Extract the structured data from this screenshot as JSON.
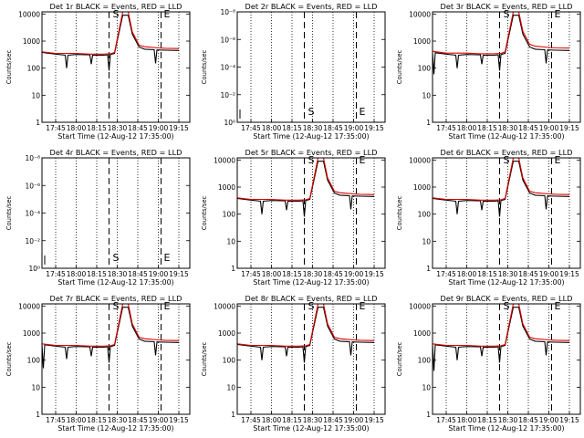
{
  "figure": {
    "background": "#ffffff",
    "axis_color": "#000000",
    "events_color": "#000000",
    "lld_color": "#e00000"
  },
  "chart_data": [
    {
      "id": "det1r",
      "type": "line",
      "scale": "log",
      "title": "Det 1r  BLACK = Events, RED = LLD",
      "ylabel": "Counts/sec",
      "xlabel": "Start Time (12-Aug-12 17:35:00)",
      "yticks": [
        "1",
        "10",
        "100",
        "1000",
        "10000"
      ],
      "xticks": [
        "17:45",
        "18:00",
        "18:15",
        "18:30",
        "18:45",
        "19:00",
        "19:15"
      ],
      "markers": [
        "S",
        "E"
      ],
      "series": [
        {
          "name": "Events",
          "color": "#000000",
          "x": [
            "17:35",
            "17:45",
            "17:52",
            "17:53",
            "17:54",
            "18:00",
            "18:10",
            "18:11",
            "18:12",
            "18:20",
            "18:23",
            "18:24",
            "18:25",
            "18:28",
            "18:34",
            "18:38",
            "18:41",
            "18:46",
            "18:50",
            "18:57",
            "18:58",
            "18:59",
            "19:05",
            "19:15"
          ],
          "y": [
            380,
            330,
            300,
            100,
            300,
            320,
            310,
            140,
            300,
            300,
            310,
            80,
            320,
            350,
            9000,
            9000,
            1800,
            600,
            500,
            480,
            150,
            470,
            460,
            450
          ]
        },
        {
          "name": "LLD",
          "color": "#e00000",
          "x": [
            "17:35",
            "17:45",
            "18:00",
            "18:10",
            "18:20",
            "18:25",
            "18:28",
            "18:34",
            "18:38",
            "18:41",
            "18:46",
            "18:50",
            "19:00",
            "19:05",
            "19:15"
          ],
          "y": [
            400,
            350,
            350,
            330,
            330,
            340,
            380,
            12000,
            12000,
            2200,
            700,
            620,
            560,
            540,
            530
          ]
        }
      ]
    },
    {
      "id": "det2r",
      "type": "line",
      "scale": "exp",
      "title": "Det 2r  BLACK = Events, RED = LLD",
      "ylabel": "Counts/sec",
      "xlabel": "Start Time (12-Aug-12 17:35:00)",
      "yticks": [
        "10⁰",
        "10⁻²",
        "10⁻⁴",
        "10⁻⁶",
        "10⁻⁸"
      ],
      "xticks": [
        "17:45",
        "18:00",
        "18:15",
        "18:30",
        "18:45",
        "19:00",
        "19:15"
      ],
      "markers": [
        "S",
        "E"
      ],
      "series": []
    },
    {
      "id": "det3r",
      "type": "line",
      "scale": "log",
      "title": "Det 3r  BLACK = Events, RED = LLD",
      "ylabel": "Counts/sec",
      "xlabel": "Start Time (12-Aug-12 17:35:00)",
      "yticks": [
        "1",
        "10",
        "100",
        "1000",
        "10000"
      ],
      "xticks": [
        "17:45",
        "18:00",
        "18:15",
        "18:30",
        "18:45",
        "19:00",
        "19:15"
      ],
      "markers": [
        "S",
        "E"
      ],
      "series": [
        {
          "name": "Events",
          "color": "#000000",
          "x": [
            "17:35",
            "17:36",
            "17:37",
            "17:45",
            "17:52",
            "17:53",
            "17:54",
            "18:00",
            "18:10",
            "18:11",
            "18:12",
            "18:20",
            "18:23",
            "18:24",
            "18:25",
            "18:28",
            "18:34",
            "18:38",
            "18:41",
            "18:46",
            "18:50",
            "18:57",
            "18:58",
            "18:59",
            "19:05",
            "19:15"
          ],
          "y": [
            380,
            60,
            370,
            330,
            300,
            100,
            300,
            320,
            310,
            140,
            300,
            300,
            310,
            80,
            320,
            350,
            9000,
            9000,
            1800,
            600,
            500,
            480,
            150,
            470,
            460,
            450
          ]
        },
        {
          "name": "LLD",
          "color": "#e00000",
          "x": [
            "17:35",
            "17:45",
            "18:00",
            "18:10",
            "18:20",
            "18:25",
            "18:28",
            "18:34",
            "18:38",
            "18:41",
            "18:46",
            "18:50",
            "19:00",
            "19:05",
            "19:15"
          ],
          "y": [
            420,
            360,
            360,
            340,
            340,
            350,
            400,
            12000,
            12000,
            2300,
            750,
            650,
            580,
            560,
            550
          ]
        }
      ]
    },
    {
      "id": "det4r",
      "type": "line",
      "scale": "exp",
      "title": "Det 4r  BLACK = Events, RED = LLD",
      "ylabel": "Counts/sec",
      "xlabel": "Start Time (12-Aug-12 17:35:00)",
      "yticks": [
        "10⁰",
        "10⁻²",
        "10⁻⁴",
        "10⁻⁶",
        "10⁻⁸"
      ],
      "xticks": [
        "17:45",
        "18:00",
        "18:15",
        "18:30",
        "18:45",
        "19:00",
        "19:15"
      ],
      "markers": [
        "S",
        "E"
      ],
      "series": []
    },
    {
      "id": "det5r",
      "type": "line",
      "scale": "log",
      "title": "Det 5r  BLACK = Events, RED = LLD",
      "ylabel": "Counts/sec",
      "xlabel": "Start Time (12-Aug-12 17:35:00)",
      "yticks": [
        "1",
        "10",
        "100",
        "1000",
        "10000"
      ],
      "xticks": [
        "17:45",
        "18:00",
        "18:15",
        "18:30",
        "18:45",
        "19:00",
        "19:15"
      ],
      "markers": [
        "S",
        "E"
      ],
      "series": [
        {
          "name": "Events",
          "color": "#000000",
          "x": [
            "17:35",
            "17:45",
            "17:52",
            "17:53",
            "17:54",
            "18:00",
            "18:10",
            "18:11",
            "18:12",
            "18:20",
            "18:23",
            "18:24",
            "18:25",
            "18:28",
            "18:34",
            "18:38",
            "18:41",
            "18:46",
            "18:50",
            "18:57",
            "18:58",
            "18:59",
            "19:05",
            "19:15"
          ],
          "y": [
            380,
            330,
            300,
            100,
            300,
            320,
            310,
            140,
            300,
            300,
            310,
            80,
            320,
            350,
            9000,
            9000,
            1800,
            600,
            500,
            480,
            150,
            470,
            460,
            450
          ]
        },
        {
          "name": "LLD",
          "color": "#e00000",
          "x": [
            "17:35",
            "17:45",
            "18:00",
            "18:10",
            "18:20",
            "18:25",
            "18:28",
            "18:34",
            "18:38",
            "18:41",
            "18:46",
            "18:50",
            "19:00",
            "19:05",
            "19:15"
          ],
          "y": [
            400,
            350,
            350,
            330,
            330,
            340,
            380,
            12000,
            12000,
            2200,
            700,
            620,
            560,
            540,
            530
          ]
        }
      ]
    },
    {
      "id": "det6r",
      "type": "line",
      "scale": "log",
      "title": "Det 6r  BLACK = Events, RED = LLD",
      "ylabel": "Counts/sec",
      "xlabel": "Start Time (12-Aug-12 17:35:00)",
      "yticks": [
        "1",
        "10",
        "100",
        "1000",
        "10000"
      ],
      "xticks": [
        "17:45",
        "18:00",
        "18:15",
        "18:30",
        "18:45",
        "19:00",
        "19:15"
      ],
      "markers": [
        "S",
        "E"
      ],
      "series": [
        {
          "name": "Events",
          "color": "#000000",
          "x": [
            "17:35",
            "17:45",
            "17:52",
            "17:53",
            "17:54",
            "18:00",
            "18:10",
            "18:11",
            "18:12",
            "18:20",
            "18:23",
            "18:24",
            "18:25",
            "18:28",
            "18:34",
            "18:38",
            "18:41",
            "18:46",
            "18:50",
            "18:57",
            "18:58",
            "18:59",
            "19:05",
            "19:15"
          ],
          "y": [
            380,
            330,
            300,
            100,
            300,
            320,
            310,
            140,
            300,
            300,
            310,
            80,
            320,
            350,
            9000,
            9000,
            1800,
            600,
            500,
            480,
            150,
            470,
            460,
            450
          ]
        },
        {
          "name": "LLD",
          "color": "#e00000",
          "x": [
            "17:35",
            "17:45",
            "18:00",
            "18:10",
            "18:20",
            "18:25",
            "18:28",
            "18:34",
            "18:38",
            "18:41",
            "18:46",
            "18:50",
            "19:00",
            "19:05",
            "19:15"
          ],
          "y": [
            400,
            350,
            350,
            330,
            330,
            340,
            380,
            12000,
            12000,
            2200,
            700,
            620,
            560,
            540,
            530
          ]
        }
      ]
    },
    {
      "id": "det7r",
      "type": "line",
      "scale": "log",
      "title": "Det 7r  BLACK = Events, RED = LLD",
      "ylabel": "Counts/sec",
      "xlabel": "Start Time (12-Aug-12 17:35:00)",
      "yticks": [
        "1",
        "10",
        "100",
        "1000",
        "10000"
      ],
      "xticks": [
        "17:45",
        "18:00",
        "18:15",
        "18:30",
        "18:45",
        "19:00",
        "19:15"
      ],
      "markers": [
        "S",
        "E"
      ],
      "series": [
        {
          "name": "Events",
          "color": "#000000",
          "x": [
            "17:35",
            "17:36",
            "17:37",
            "17:45",
            "17:52",
            "17:53",
            "17:54",
            "18:00",
            "18:10",
            "18:11",
            "18:12",
            "18:20",
            "18:23",
            "18:24",
            "18:25",
            "18:28",
            "18:34",
            "18:38",
            "18:41",
            "18:46",
            "18:50",
            "18:57",
            "18:58",
            "18:59",
            "19:05",
            "19:15"
          ],
          "y": [
            380,
            50,
            370,
            330,
            300,
            110,
            300,
            320,
            310,
            140,
            300,
            300,
            310,
            80,
            320,
            350,
            9000,
            9000,
            1800,
            600,
            500,
            480,
            150,
            470,
            460,
            450
          ]
        },
        {
          "name": "LLD",
          "color": "#e00000",
          "x": [
            "17:35",
            "17:45",
            "18:00",
            "18:10",
            "18:20",
            "18:25",
            "18:28",
            "18:34",
            "18:38",
            "18:41",
            "18:46",
            "18:50",
            "19:00",
            "19:05",
            "19:15"
          ],
          "y": [
            400,
            350,
            350,
            330,
            330,
            340,
            380,
            12000,
            12000,
            2200,
            700,
            620,
            560,
            540,
            530
          ]
        }
      ]
    },
    {
      "id": "det8r",
      "type": "line",
      "scale": "log",
      "title": "Det 8r  BLACK = Events, RED = LLD",
      "ylabel": "Counts/sec",
      "xlabel": "Start Time (12-Aug-12 17:35:00)",
      "yticks": [
        "1",
        "10",
        "100",
        "1000",
        "10000"
      ],
      "xticks": [
        "17:45",
        "18:00",
        "18:15",
        "18:30",
        "18:45",
        "19:00",
        "19:15"
      ],
      "markers": [
        "S",
        "E"
      ],
      "series": [
        {
          "name": "Events",
          "color": "#000000",
          "x": [
            "17:35",
            "17:45",
            "17:52",
            "17:53",
            "17:54",
            "18:00",
            "18:10",
            "18:11",
            "18:12",
            "18:20",
            "18:23",
            "18:24",
            "18:25",
            "18:28",
            "18:34",
            "18:38",
            "18:41",
            "18:46",
            "18:50",
            "18:57",
            "18:58",
            "18:59",
            "19:05",
            "19:15"
          ],
          "y": [
            380,
            330,
            300,
            100,
            300,
            320,
            310,
            140,
            300,
            300,
            310,
            80,
            320,
            350,
            9000,
            9000,
            1800,
            600,
            500,
            480,
            150,
            470,
            460,
            450
          ]
        },
        {
          "name": "LLD",
          "color": "#e00000",
          "x": [
            "17:35",
            "17:45",
            "18:00",
            "18:10",
            "18:20",
            "18:25",
            "18:28",
            "18:34",
            "18:38",
            "18:41",
            "18:46",
            "18:50",
            "19:00",
            "19:05",
            "19:15"
          ],
          "y": [
            400,
            350,
            350,
            330,
            330,
            340,
            380,
            12000,
            12000,
            2200,
            700,
            620,
            560,
            540,
            530
          ]
        }
      ]
    },
    {
      "id": "det9r",
      "type": "line",
      "scale": "log",
      "title": "Det 9r  BLACK = Events, RED = LLD",
      "ylabel": "Counts/sec",
      "xlabel": "Start Time (12-Aug-12 17:35:00)",
      "yticks": [
        "1",
        "10",
        "100",
        "1000",
        "10000"
      ],
      "xticks": [
        "17:45",
        "18:00",
        "18:15",
        "18:30",
        "18:45",
        "19:00",
        "19:15"
      ],
      "markers": [
        "S",
        "E"
      ],
      "series": [
        {
          "name": "Events",
          "color": "#000000",
          "x": [
            "17:35",
            "17:36",
            "17:37",
            "17:45",
            "17:52",
            "17:53",
            "17:54",
            "18:00",
            "18:10",
            "18:11",
            "18:12",
            "18:20",
            "18:23",
            "18:24",
            "18:25",
            "18:28",
            "18:34",
            "18:38",
            "18:41",
            "18:46",
            "18:50",
            "18:57",
            "18:58",
            "18:59",
            "19:05",
            "19:15"
          ],
          "y": [
            380,
            40,
            370,
            330,
            300,
            100,
            300,
            320,
            310,
            140,
            300,
            300,
            310,
            80,
            320,
            350,
            9000,
            9000,
            1800,
            600,
            500,
            480,
            150,
            470,
            460,
            450
          ]
        },
        {
          "name": "LLD",
          "color": "#e00000",
          "x": [
            "17:35",
            "17:45",
            "18:00",
            "18:10",
            "18:20",
            "18:25",
            "18:28",
            "18:34",
            "18:38",
            "18:41",
            "18:46",
            "18:50",
            "19:00",
            "19:05",
            "19:15"
          ],
          "y": [
            400,
            350,
            350,
            330,
            330,
            340,
            380,
            12000,
            12000,
            2200,
            700,
            620,
            560,
            540,
            530
          ]
        }
      ]
    }
  ]
}
